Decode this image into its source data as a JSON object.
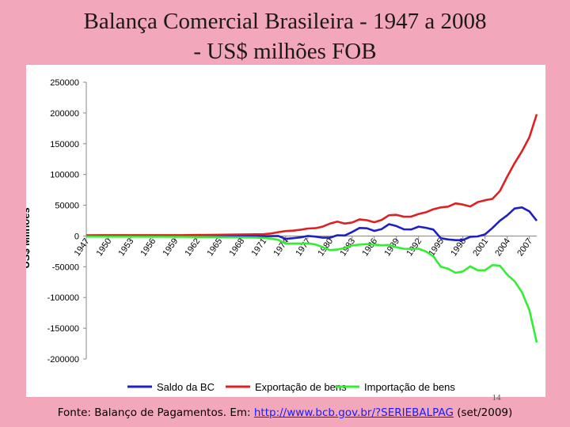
{
  "title": {
    "line1": "Balança Comercial Brasileira - 1947 a 2008",
    "line2": "- US$ milhões FOB"
  },
  "page_number": "14",
  "footer": {
    "prefix": "Fonte: Balanço de Pagamentos. Em: ",
    "link": "http://www.bcb.gov.br/?SERIEBALPAG",
    "suffix": " (set/2009)"
  },
  "colors": {
    "saldo": "#1f1fc8",
    "exportacao": "#e02020",
    "importacao": "#33ee33",
    "background": "#f2a7ba"
  },
  "chart_data": {
    "type": "line",
    "title": "",
    "xlabel": "",
    "ylabel": "US$ Milhões",
    "ylim": [
      -200000,
      250000
    ],
    "yticks": [
      250000,
      200000,
      150000,
      100000,
      50000,
      0,
      -50000,
      -100000,
      -150000,
      -200000
    ],
    "xlim": [
      1947,
      2008
    ],
    "xticks": [
      "1947",
      "1950",
      "1953",
      "1956",
      "1959",
      "1962",
      "1965",
      "1968",
      "1971",
      "1974",
      "1977",
      "1980",
      "1983",
      "1986",
      "1989",
      "1992",
      "1995",
      "1998",
      "2001",
      "2004",
      "2007"
    ],
    "grid": false,
    "legend": "bottom",
    "series": [
      {
        "name": "Saldo da BC",
        "color": "#1f1fc8",
        "x": [
          1947,
          1960,
          1970,
          1971,
          1972,
          1973,
          1974,
          1975,
          1976,
          1977,
          1978,
          1979,
          1980,
          1981,
          1982,
          1983,
          1984,
          1985,
          1986,
          1987,
          1988,
          1989,
          1990,
          1991,
          1992,
          1993,
          1994,
          1995,
          1996,
          1997,
          1998,
          1999,
          2000,
          2001,
          2002,
          2003,
          2004,
          2005,
          2006,
          2007,
          2008
        ],
        "values": [
          0,
          0,
          200,
          -300,
          -200,
          0,
          -4700,
          -3500,
          -2200,
          100,
          -1000,
          -2800,
          -2800,
          1200,
          800,
          6500,
          13100,
          12500,
          8300,
          11200,
          19200,
          16100,
          10800,
          10600,
          15200,
          13300,
          10500,
          -3500,
          -5600,
          -6800,
          -6600,
          -1300,
          -700,
          2600,
          13100,
          24800,
          33600,
          44700,
          46500,
          40000,
          24800
        ]
      },
      {
        "name": "Exportação de bens",
        "color": "#e02020",
        "x": [
          1947,
          1960,
          1970,
          1971,
          1972,
          1973,
          1974,
          1975,
          1976,
          1977,
          1978,
          1979,
          1980,
          1981,
          1982,
          1983,
          1984,
          1985,
          1986,
          1987,
          1988,
          1989,
          1990,
          1991,
          1992,
          1993,
          1994,
          1995,
          1996,
          1997,
          1998,
          1999,
          2000,
          2001,
          2002,
          2003,
          2004,
          2005,
          2006,
          2007,
          2008
        ],
        "values": [
          1200,
          1300,
          2700,
          2900,
          4000,
          6200,
          8000,
          8700,
          10100,
          12100,
          12700,
          15200,
          20100,
          23300,
          20200,
          21900,
          27000,
          25600,
          22300,
          26200,
          33800,
          34400,
          31400,
          31600,
          35800,
          38600,
          43500,
          46500,
          47700,
          53000,
          51100,
          48000,
          55100,
          58200,
          60400,
          73100,
          96500,
          118300,
          137800,
          160600,
          197900
        ]
      },
      {
        "name": "Importação de bens",
        "color": "#33ee33",
        "x": [
          1947,
          1960,
          1970,
          1971,
          1972,
          1973,
          1974,
          1975,
          1976,
          1977,
          1978,
          1979,
          1980,
          1981,
          1982,
          1983,
          1984,
          1985,
          1986,
          1987,
          1988,
          1989,
          1990,
          1991,
          1992,
          1993,
          1994,
          1995,
          1996,
          1997,
          1998,
          1999,
          2000,
          2001,
          2002,
          2003,
          2004,
          2005,
          2006,
          2007,
          2008
        ],
        "values": [
          -1000,
          -1300,
          -2500,
          -3200,
          -4200,
          -6200,
          -12600,
          -12200,
          -12300,
          -12000,
          -13700,
          -18000,
          -22900,
          -22100,
          -19400,
          -15400,
          -13900,
          -13200,
          -14000,
          -15100,
          -14600,
          -18300,
          -20700,
          -21000,
          -20600,
          -25300,
          -33100,
          -50000,
          -53300,
          -59800,
          -57700,
          -49300,
          -55800,
          -55600,
          -47200,
          -48300,
          -62800,
          -73600,
          -91400,
          -120600,
          -173200
        ]
      }
    ]
  }
}
